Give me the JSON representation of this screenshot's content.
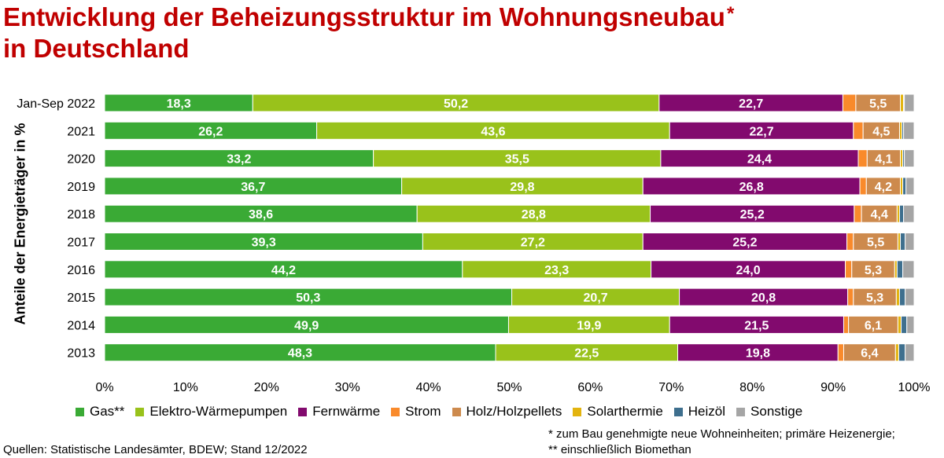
{
  "title": {
    "line1": "Entwicklung der Beheizungsstruktur im Wohnungsneubau",
    "asterisk": "*",
    "line2": "in Deutschland"
  },
  "footer": {
    "source": "Quellen: Statistische Landesämter, BDEW; Stand 12/2022",
    "note1": "* zum Bau genehmigte neue Wohneinheiten; primäre Heizenergie;",
    "note2": "** einschließlich Biomethan"
  },
  "chart_data": {
    "type": "bar",
    "orientation": "horizontal",
    "stacked": true,
    "ylabel": "Anteile der Energieträger in %",
    "xlim": [
      0,
      100
    ],
    "xticks": [
      "0%",
      "10%",
      "20%",
      "30%",
      "40%",
      "50%",
      "60%",
      "70%",
      "80%",
      "90%",
      "100%"
    ],
    "grid": false,
    "legend_position": "bottom",
    "categories": [
      "Jan-Sep 2022",
      "2021",
      "2020",
      "2019",
      "2018",
      "2017",
      "2016",
      "2015",
      "2014",
      "2013"
    ],
    "series": [
      {
        "name": "Gas**",
        "color": "#3aaa35",
        "labeled": true,
        "values": [
          18.3,
          26.2,
          33.2,
          36.7,
          38.6,
          39.3,
          44.2,
          50.3,
          49.9,
          48.3
        ],
        "labels": [
          "18,3",
          "26,2",
          "33,2",
          "36,7",
          "38,6",
          "39,3",
          "44,2",
          "50,3",
          "49,9",
          "48,3"
        ]
      },
      {
        "name": "Elektro-Wärmepumpen",
        "color": "#99c21b",
        "labeled": true,
        "values": [
          50.2,
          43.6,
          35.5,
          29.8,
          28.8,
          27.2,
          23.3,
          20.7,
          19.9,
          22.5
        ],
        "labels": [
          "50,2",
          "43,6",
          "35,5",
          "29,8",
          "28,8",
          "27,2",
          "23,3",
          "20,7",
          "19,9",
          "22,5"
        ]
      },
      {
        "name": "Fernwärme",
        "color": "#820a6e",
        "labeled": true,
        "values": [
          22.7,
          22.7,
          24.4,
          26.8,
          25.2,
          25.2,
          24.0,
          20.8,
          21.5,
          19.8
        ],
        "labels": [
          "22,7",
          "22,7",
          "24,4",
          "26,8",
          "25,2",
          "25,2",
          "24,0",
          "20,8",
          "21,5",
          "19,8"
        ]
      },
      {
        "name": "Strom",
        "color": "#f98a2b",
        "labeled": false,
        "values": [
          1.6,
          1.2,
          1.1,
          0.8,
          0.9,
          0.8,
          0.8,
          0.7,
          0.6,
          0.7
        ]
      },
      {
        "name": "Holz/Holzpellets",
        "color": "#cd8a4d",
        "labeled": true,
        "values": [
          5.5,
          4.5,
          4.1,
          4.2,
          4.4,
          5.5,
          5.3,
          5.3,
          6.1,
          6.4
        ],
        "labels": [
          "5,5",
          "4,5",
          "4,1",
          "4,2",
          "4,4",
          "5,5",
          "5,3",
          "5,3",
          "6,1",
          "6,4"
        ]
      },
      {
        "name": "Solarthermie",
        "color": "#e3b40f",
        "labeled": false,
        "values": [
          0.4,
          0.3,
          0.3,
          0.3,
          0.3,
          0.3,
          0.3,
          0.4,
          0.4,
          0.4
        ]
      },
      {
        "name": "Heizöl",
        "color": "#3e6f8e",
        "labeled": false,
        "values": [
          0.1,
          0.2,
          0.2,
          0.4,
          0.5,
          0.6,
          0.7,
          0.7,
          0.7,
          0.8
        ]
      },
      {
        "name": "Sonstige",
        "color": "#a5a5a5",
        "labeled": false,
        "values": [
          1.2,
          1.3,
          1.2,
          1.0,
          1.3,
          1.1,
          1.4,
          1.1,
          0.9,
          1.1
        ]
      }
    ]
  }
}
